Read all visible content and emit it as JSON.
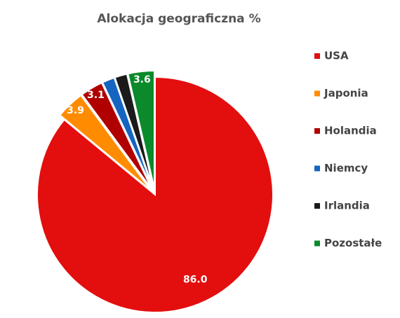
{
  "chart_data": {
    "type": "pie",
    "title": "Alokacja geograficzna %",
    "categories": [
      "USA",
      "Japonia",
      "Holandia",
      "Niemcy",
      "Irlandia",
      "Pozostałe"
    ],
    "values": [
      86.0,
      3.9,
      3.1,
      1.7,
      1.7,
      3.6
    ],
    "value_labels": [
      "86.0",
      "3.9",
      "3.1",
      null,
      null,
      "3.6"
    ],
    "colors": [
      "#e30e0e",
      "#ff8c00",
      "#b00000",
      "#1565c0",
      "#1a1a1a",
      "#0a8a2a"
    ]
  }
}
